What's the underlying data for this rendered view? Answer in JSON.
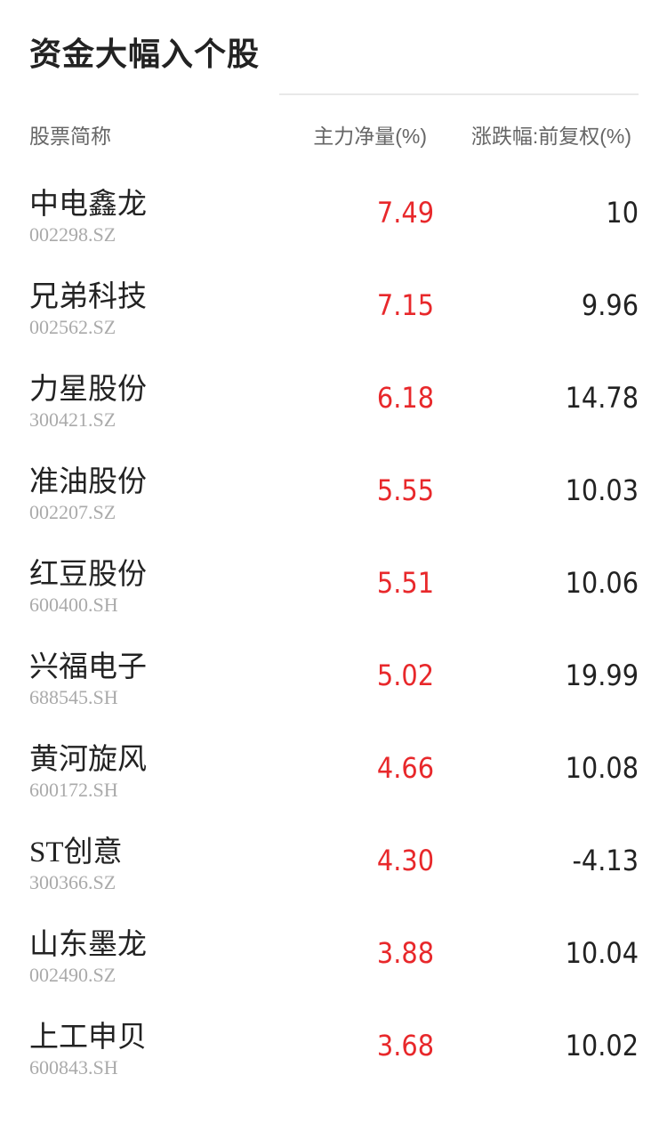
{
  "title": "资金大幅入个股",
  "headers": {
    "name": "股票简称",
    "net_main": "主力净量(%)",
    "change": "涨跌幅:前复权(%)"
  },
  "colors": {
    "positive": "#e8282b",
    "text": "#222222"
  },
  "rows": [
    {
      "name": "中电鑫龙",
      "code": "002298.SZ",
      "net_main": "7.49",
      "change": "10"
    },
    {
      "name": "兄弟科技",
      "code": "002562.SZ",
      "net_main": "7.15",
      "change": "9.96"
    },
    {
      "name": "力星股份",
      "code": "300421.SZ",
      "net_main": "6.18",
      "change": "14.78"
    },
    {
      "name": "准油股份",
      "code": "002207.SZ",
      "net_main": "5.55",
      "change": "10.03"
    },
    {
      "name": "红豆股份",
      "code": "600400.SH",
      "net_main": "5.51",
      "change": "10.06"
    },
    {
      "name": "兴福电子",
      "code": "688545.SH",
      "net_main": "5.02",
      "change": "19.99"
    },
    {
      "name": "黄河旋风",
      "code": "600172.SH",
      "net_main": "4.66",
      "change": "10.08"
    },
    {
      "name": "ST创意",
      "code": "300366.SZ",
      "net_main": "4.30",
      "change": "-4.13"
    },
    {
      "name": "山东墨龙",
      "code": "002490.SZ",
      "net_main": "3.88",
      "change": "10.04"
    },
    {
      "name": "上工申贝",
      "code": "600843.SH",
      "net_main": "3.68",
      "change": "10.02"
    }
  ]
}
